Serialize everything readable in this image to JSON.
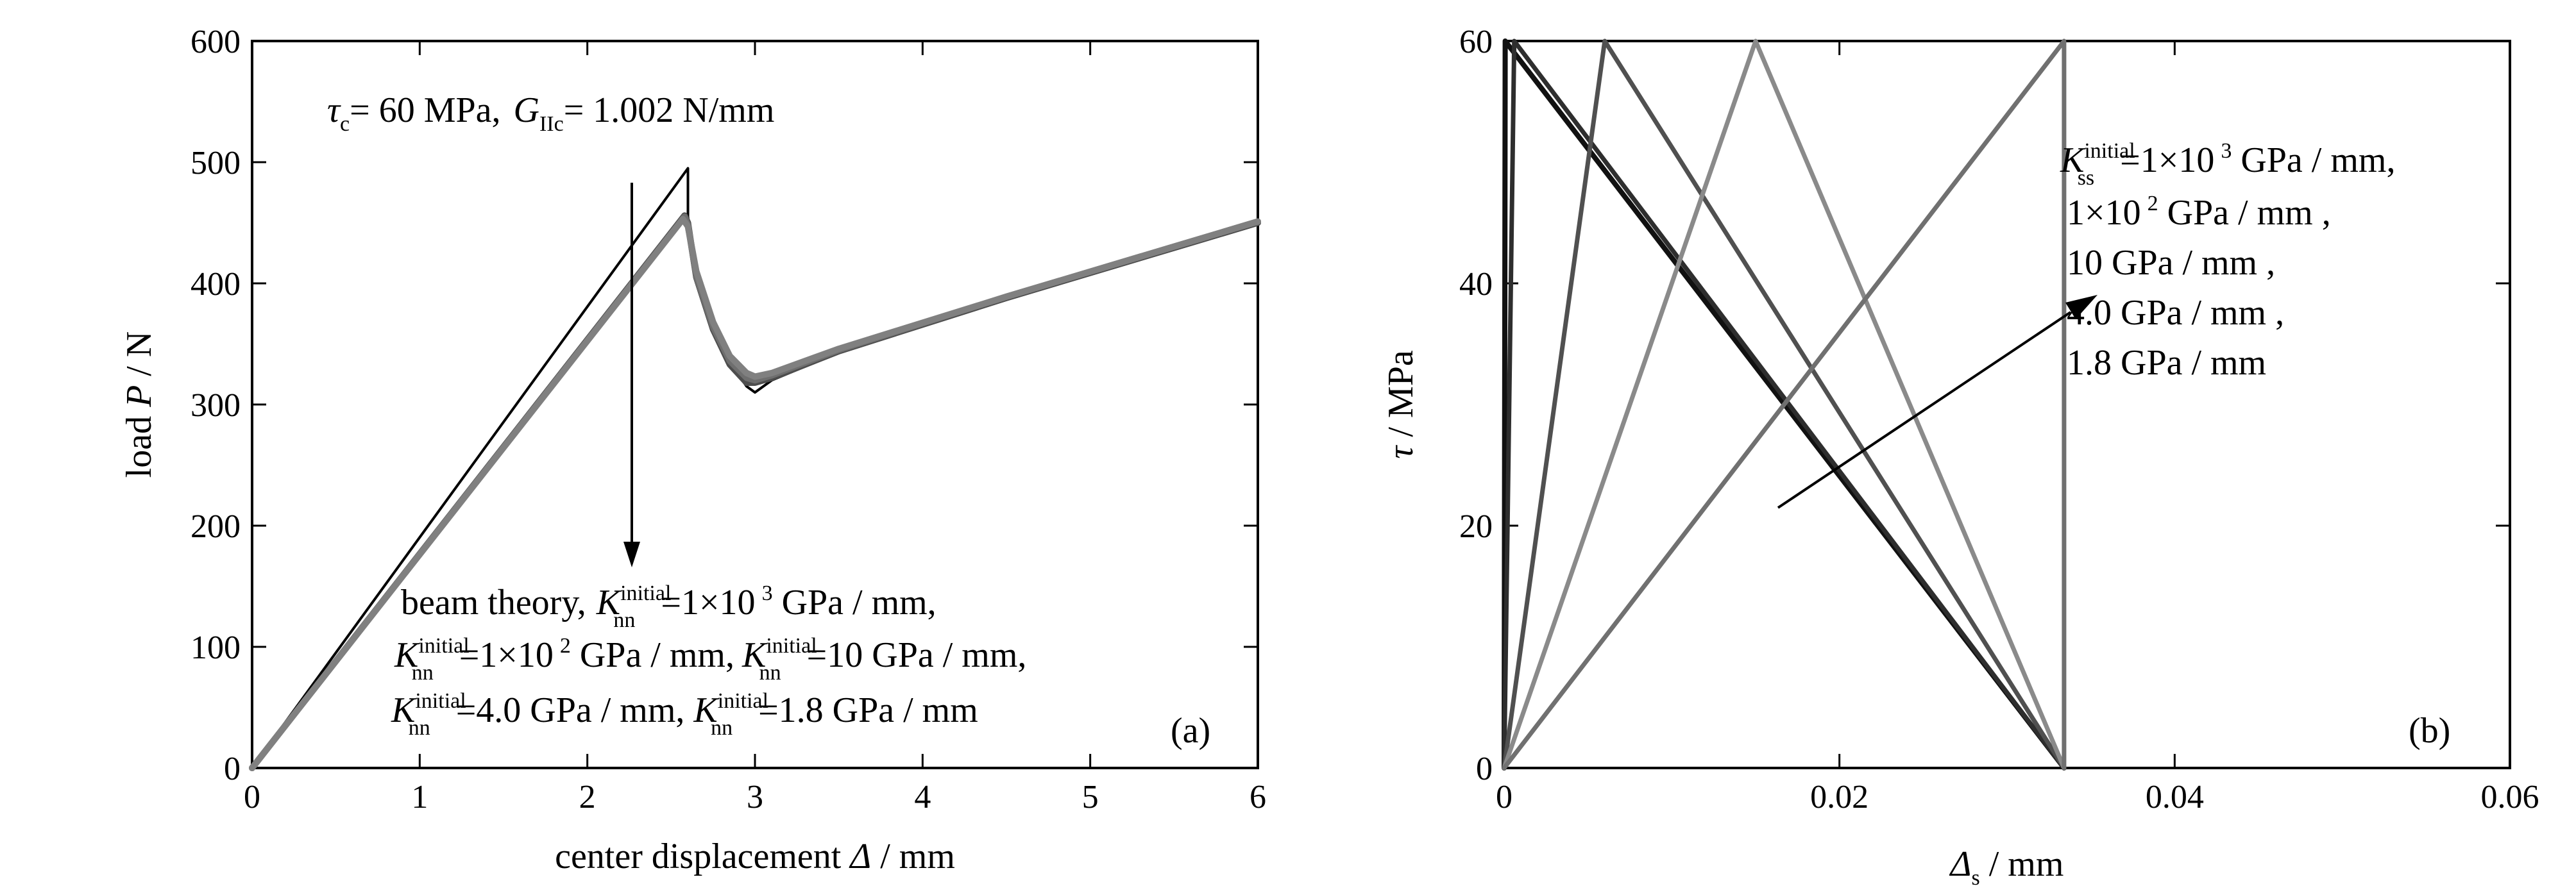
{
  "chart_data": [
    {
      "type": "line",
      "panel_label": "(a)",
      "xlabel": {
        "text": "center displacement ",
        "symbol": "Δ",
        "unit": " / mm"
      },
      "ylabel": {
        "text": "load ",
        "symbol": "P",
        "unit": " / N"
      },
      "xlim": [
        0,
        6
      ],
      "ylim": [
        0,
        600
      ],
      "xticks": [
        "0",
        "1",
        "2",
        "3",
        "4",
        "5",
        "6"
      ],
      "yticks": [
        "0",
        "100",
        "200",
        "300",
        "400",
        "500",
        "600"
      ],
      "params": {
        "tau_sym": "τ",
        "tau_sub": "c",
        "tau_val": "= 60 MPa,",
        "g_sym": "G",
        "g_sub": "IIc",
        "g_val": "= 1.002 N/mm"
      },
      "legend": {
        "line1_prefix": "beam theory,",
        "k_sym": "K",
        "k_sub": "nn",
        "k_sup": "initial",
        "entries": [
          {
            "value": "=1×10",
            "exp": "3",
            "unit": " GPa / mm,"
          },
          {
            "value": "=1×10",
            "exp": "2",
            "unit": " GPa / mm,"
          },
          {
            "value": "=10 GPa / mm,",
            "exp": "",
            "unit": ""
          },
          {
            "value": "=4.0  GPa / mm,",
            "exp": "",
            "unit": ""
          },
          {
            "value": "=1.8 GPa / mm",
            "exp": "",
            "unit": ""
          }
        ]
      },
      "series": [
        {
          "color": "#000000",
          "x": [
            0,
            2.6,
            2.6,
            2.65,
            2.75,
            2.85,
            2.95,
            3.0,
            3.1,
            3.5,
            4.5,
            6.0
          ],
          "y": [
            0,
            495,
            455,
            410,
            365,
            335,
            315,
            310,
            320,
            343,
            388,
            450
          ]
        },
        {
          "color": "#4d4d4d",
          "x": [
            0,
            2.58,
            2.6,
            2.65,
            2.75,
            2.85,
            2.95,
            3.0,
            3.1,
            3.5,
            4.5,
            6.0
          ],
          "y": [
            0,
            456,
            450,
            405,
            362,
            333,
            318,
            318,
            322,
            344,
            388,
            450
          ]
        },
        {
          "color": "#6e6e6e",
          "x": [
            0,
            2.58,
            2.6,
            2.65,
            2.75,
            2.85,
            2.95,
            3.0,
            3.1,
            3.5,
            4.5,
            6.0
          ],
          "y": [
            0,
            455,
            448,
            406,
            364,
            336,
            322,
            320,
            324,
            345,
            389,
            451
          ]
        },
        {
          "color": "#808080",
          "x": [
            0,
            2.57,
            2.6,
            2.65,
            2.75,
            2.85,
            2.95,
            3.0,
            3.1,
            3.5,
            4.5,
            6.0
          ],
          "y": [
            0,
            453,
            447,
            410,
            368,
            340,
            326,
            323,
            326,
            346,
            389,
            451
          ]
        }
      ]
    },
    {
      "type": "line",
      "panel_label": "(b)",
      "xlabel": {
        "text": "",
        "symbol": "Δ",
        "sub": "s",
        "unit": " / mm"
      },
      "ylabel": {
        "text": "",
        "symbol": "τ",
        "unit": " / MPa"
      },
      "xlim": [
        0,
        0.06
      ],
      "ylim": [
        0,
        60
      ],
      "xticks": [
        "0",
        "0.02",
        "0.04",
        "0.06"
      ],
      "yticks": [
        "0",
        "20",
        "40",
        "60"
      ],
      "legend": {
        "k_sym": "K",
        "k_sub": "ss",
        "k_sup": "initial",
        "lines": [
          {
            "value": "=1×10",
            "exp": "3",
            "unit": " GPa / mm,"
          },
          {
            "value": "1×10",
            "exp": "2",
            "unit": "  GPa / mm ,"
          },
          {
            "value": "10  GPa / mm ,",
            "exp": "",
            "unit": ""
          },
          {
            "value": "4.0  GPa / mm ,",
            "exp": "",
            "unit": ""
          },
          {
            "value": "1.8  GPa / mm",
            "exp": "",
            "unit": ""
          }
        ]
      },
      "series": [
        {
          "color": "#111111",
          "x": [
            0,
            6e-05,
            0.0334,
            0.0334
          ],
          "y": [
            0,
            60,
            0,
            0
          ]
        },
        {
          "color": "#2e2e2e",
          "x": [
            0,
            0.0006,
            0.0334
          ],
          "y": [
            0,
            60,
            0
          ]
        },
        {
          "color": "#505050",
          "x": [
            0,
            0.006,
            0.0334
          ],
          "y": [
            0,
            60,
            0
          ]
        },
        {
          "color": "#8a8a8a",
          "x": [
            0,
            0.015,
            0.0334
          ],
          "y": [
            0,
            60,
            0
          ]
        },
        {
          "color": "#707070",
          "x": [
            0,
            0.0334,
            0.0334
          ],
          "y": [
            0,
            60,
            0
          ]
        }
      ]
    }
  ]
}
